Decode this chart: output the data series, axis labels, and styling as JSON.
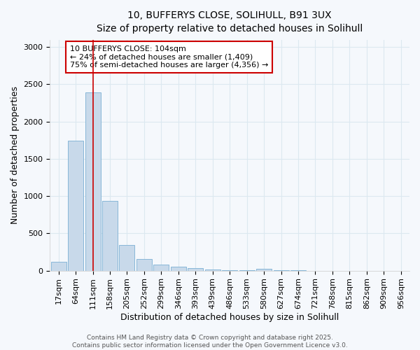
{
  "title_line1": "10, BUFFERYS CLOSE, SOLIHULL, B91 3UX",
  "title_line2": "Size of property relative to detached houses in Solihull",
  "xlabel": "Distribution of detached houses by size in Solihull",
  "ylabel": "Number of detached properties",
  "categories": [
    "17sqm",
    "64sqm",
    "111sqm",
    "158sqm",
    "205sqm",
    "252sqm",
    "299sqm",
    "346sqm",
    "393sqm",
    "439sqm",
    "486sqm",
    "533sqm",
    "580sqm",
    "627sqm",
    "674sqm",
    "721sqm",
    "768sqm",
    "815sqm",
    "862sqm",
    "909sqm",
    "956sqm"
  ],
  "values": [
    120,
    1740,
    2390,
    940,
    345,
    155,
    80,
    50,
    35,
    15,
    10,
    8,
    25,
    3,
    3,
    0,
    0,
    0,
    0,
    0,
    0
  ],
  "bar_color": "#c8d9ea",
  "bar_edge_color": "#7aafd4",
  "marker_line_index": 2,
  "marker_line_color": "#cc0000",
  "ylim": [
    0,
    3100
  ],
  "annotation_text": "10 BUFFERYS CLOSE: 104sqm\n← 24% of detached houses are smaller (1,409)\n75% of semi-detached houses are larger (4,356) →",
  "annotation_box_color": "#ffffff",
  "annotation_box_edge": "#cc0000",
  "footer_text": "Contains HM Land Registry data © Crown copyright and database right 2025.\nContains public sector information licensed under the Open Government Licence v3.0.",
  "bg_color": "#f5f8fc",
  "grid_color": "#dce8f0",
  "title_fontsize": 10,
  "subtitle_fontsize": 9.5,
  "axis_fontsize": 9,
  "tick_fontsize": 8,
  "annotation_fontsize": 8,
  "footer_fontsize": 6.5
}
